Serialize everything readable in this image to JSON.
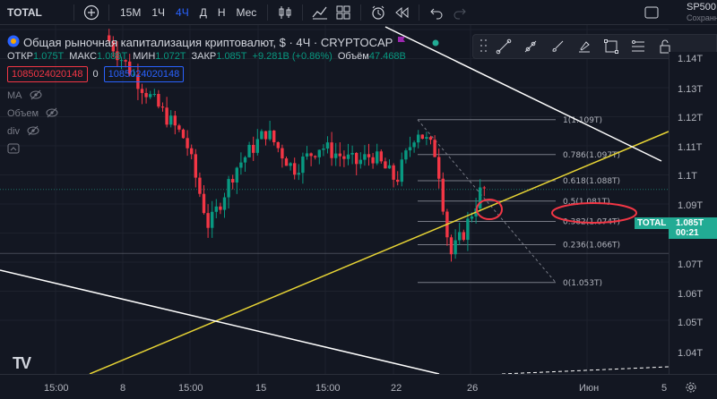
{
  "toolbar": {
    "symbol": "TOTAL",
    "intervals": [
      "15М",
      "1Ч",
      "4Ч",
      "Д",
      "Н",
      "Мес"
    ],
    "active_interval": "4Ч"
  },
  "compare": {
    "label": "SP500",
    "sub": "Сохранн"
  },
  "legend": {
    "title": "Общая рыночная капитализация криптовалют, $ · 4Ч · CRYPTOCAP",
    "open_label": "ОТКР",
    "open": "1.075T",
    "high_label": "МАКС",
    "high": "1.089T",
    "low_label": "МИН",
    "low": "1.072T",
    "close_label": "ЗАКР",
    "close": "1.085T",
    "change": "+9.281B (+0.86%)",
    "volume_label": "Объём",
    "volume": "47.468B",
    "price_box_1": "1085024020148",
    "price_box_zero": "0",
    "price_box_2": "1085024020148",
    "indicators": [
      "MA",
      "Объем",
      "div"
    ]
  },
  "price_axis": {
    "ticks": [
      "1.14T",
      "1.13T",
      "1.12T",
      "1.11T",
      "1.1T",
      "1.09T",
      "1.07T",
      "1.06T",
      "1.05T",
      "1.04T"
    ],
    "current_label": "TOTAL",
    "current_price": "1.085T",
    "countdown": "00:21"
  },
  "time_axis": {
    "ticks": [
      "15:00",
      "8",
      "15:00",
      "15",
      "15:00",
      "22",
      "26",
      "Июн",
      "5"
    ]
  },
  "fib_levels": [
    {
      "label": "1(1.109T)"
    },
    {
      "label": "0.786(1.097T)"
    },
    {
      "label": "0.618(1.088T)"
    },
    {
      "label": "0.5(1.081T)"
    },
    {
      "label": "0.382(1.074T)"
    },
    {
      "label": "0.236(1.066T)"
    },
    {
      "label": "0(1.053T)"
    }
  ],
  "logo_text": "TV",
  "colors": {
    "up": "#089981",
    "down": "#f23645",
    "accent": "#2962ff",
    "trendline": "#e6d335"
  }
}
